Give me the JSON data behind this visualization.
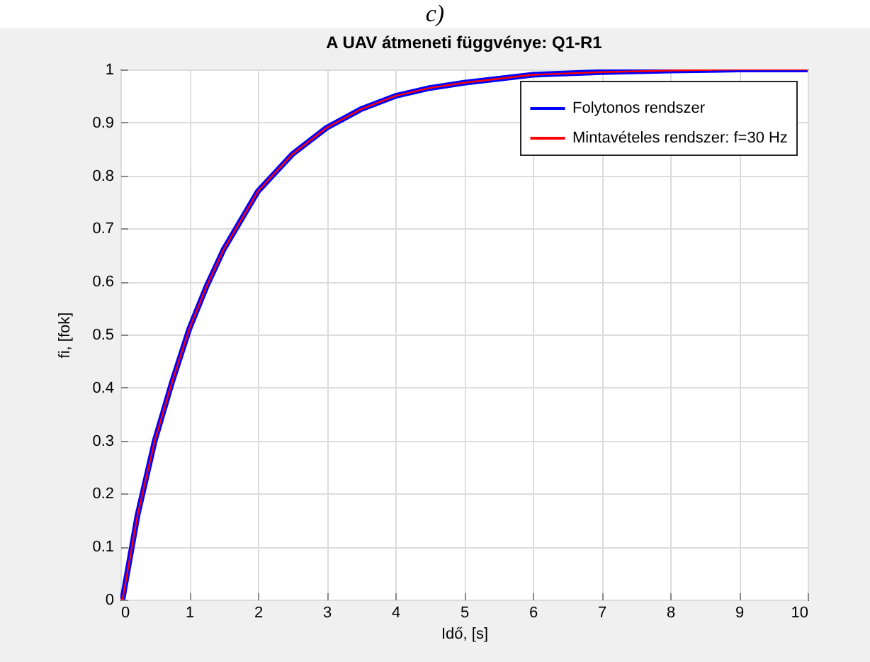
{
  "chart_data": {
    "type": "line",
    "title": "A UAV átmeneti függvénye: Q1-R1",
    "xlabel": "Idő, [s]",
    "ylabel": "fi, [fok]",
    "annotations": [
      "c)"
    ],
    "x": [
      0,
      0.03,
      0.25,
      0.5,
      0.75,
      1,
      1.25,
      1.5,
      2,
      2.5,
      3,
      3.5,
      4,
      4.5,
      5,
      6,
      7,
      8,
      9,
      10
    ],
    "series": [
      {
        "name": "Folytonos rendszer",
        "color": "#0000ff",
        "values": [
          0,
          0,
          0.16,
          0.3,
          0.41,
          0.51,
          0.59,
          0.66,
          0.77,
          0.84,
          0.89,
          0.925,
          0.95,
          0.965,
          0.975,
          0.99,
          0.995,
          0.998,
          1,
          1
        ]
      },
      {
        "name": "Mintavételes rendszer: f=30 Hz",
        "color": "#ff0000",
        "values": [
          0,
          0,
          0.16,
          0.3,
          0.41,
          0.51,
          0.59,
          0.66,
          0.77,
          0.84,
          0.89,
          0.925,
          0.95,
          0.965,
          0.975,
          0.99,
          0.995,
          0.998,
          1,
          1
        ]
      }
    ],
    "xlim": [
      0,
      10
    ],
    "xticks": [
      0,
      1,
      2,
      3,
      4,
      5,
      6,
      7,
      8,
      9,
      10
    ],
    "ylim": [
      0,
      1
    ],
    "yticks": [
      0,
      0.1,
      0.2,
      0.3,
      0.4,
      0.5,
      0.6,
      0.7,
      0.8,
      0.9,
      1
    ],
    "grid": true,
    "legend": "top right"
  }
}
